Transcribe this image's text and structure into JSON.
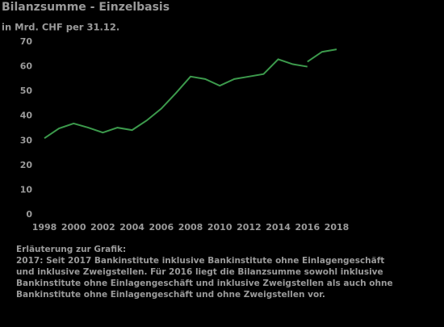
{
  "chart_data": {
    "type": "line",
    "title": "Bilanzsumme - Einzelbasis",
    "subtitle": "in Mrd. CHF per 31.12.",
    "x": [
      1998,
      1999,
      2000,
      2001,
      2002,
      2003,
      2004,
      2005,
      2006,
      2007,
      2008,
      2009,
      2010,
      2011,
      2012,
      2013,
      2014,
      2015,
      2016,
      2017,
      2018
    ],
    "series": [
      {
        "color": "#3c9a4c",
        "values": [
          31,
          35,
          37,
          35.3,
          33.3,
          35.3,
          34.3,
          38.2,
          43,
          49.3,
          56,
          55,
          52.3,
          55,
          56,
          57,
          63,
          61,
          60,
          null,
          null
        ]
      },
      {
        "color": "#3c9a4c",
        "values": [
          null,
          null,
          null,
          null,
          null,
          null,
          null,
          null,
          null,
          null,
          null,
          null,
          null,
          null,
          null,
          null,
          null,
          null,
          62,
          66,
          67
        ]
      }
    ],
    "xlim": [
      1998,
      2018
    ],
    "xticks": [
      1998,
      2000,
      2002,
      2004,
      2006,
      2008,
      2010,
      2012,
      2014,
      2016,
      2018
    ],
    "ylim": [
      0,
      70
    ],
    "yticks": [
      0,
      10,
      20,
      30,
      40,
      50,
      60,
      70
    ],
    "grid": false,
    "note_title": "Erläuterung zur Grafik:",
    "note": "2017: Seit 2017 Bankinstitute inklusive Bankinstitute ohne Einlagengeschäft und inklusive Zweigstellen. Für 2016 liegt die Bilanzsumme sowohl inklusive Bankinstitute ohne Einlagengeschäft und inklusive Zweigstellen als auch ohne Bankinstitute ohne Einlagengeschäft und ohne Zweigstellen vor."
  }
}
